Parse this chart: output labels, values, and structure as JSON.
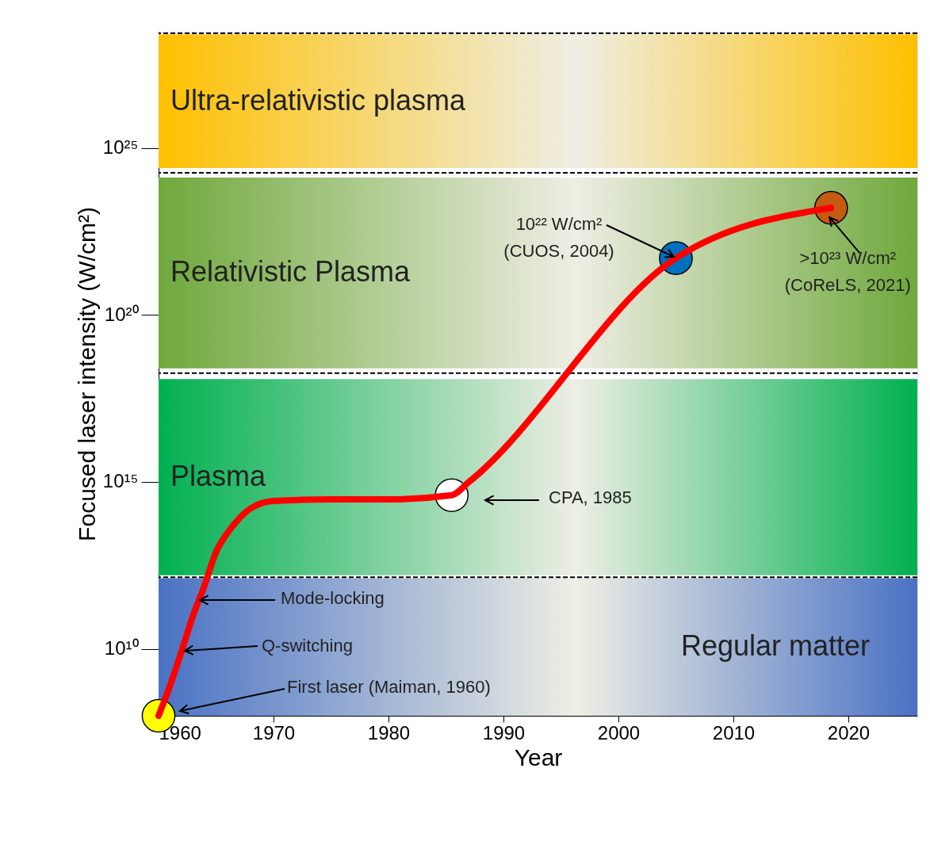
{
  "chart_data": {
    "type": "line",
    "xlabel": "Year",
    "ylabel": "Focused laser intensity (W/cm²)",
    "xlim": [
      1960,
      2026
    ],
    "xticks": [
      1960,
      1970,
      1980,
      1990,
      2000,
      2010,
      2020
    ],
    "ylim": [
      100000000.0,
      3e+28
    ],
    "log": "y",
    "yticks": [
      {
        "value": 10000000000.0,
        "label": "10¹⁰"
      },
      {
        "value": 1000000000000000.0,
        "label": "10¹⁵"
      },
      {
        "value": 1e+20,
        "label": "10²⁰"
      },
      {
        "value": 1e+25,
        "label": "10²⁵"
      }
    ],
    "grid": false,
    "bands": [
      {
        "axis": "y",
        "from": 100000000.0,
        "to": 1300000000000.0,
        "label": "Regular matter",
        "color": "#4a72c4"
      },
      {
        "axis": "y",
        "from": 1600000000000.0,
        "to": 1.2e+18,
        "label": "Plasma",
        "color": "#00b050"
      },
      {
        "axis": "y",
        "from": 2.5e+18,
        "to": 1.3e+24,
        "label": "Relativistic Plasma",
        "color": "#6fa83c"
      },
      {
        "axis": "y",
        "from": 2.5e+24,
        "to": 2.5e+28,
        "label": "Ultra-relativistic plasma",
        "color": "#ffc000"
      }
    ],
    "ref_lines": [
      {
        "axis": "y",
        "value": 1400000000000.0,
        "color": "#000000",
        "line_style": "dashed"
      },
      {
        "axis": "y",
        "value": 1.8e+18,
        "color": "#000000",
        "line_style": "dashed"
      },
      {
        "axis": "y",
        "value": 1.8e+24,
        "color": "#000000",
        "line_style": "dashed"
      },
      {
        "axis": "y",
        "value": 2.7e+28,
        "color": "#000000",
        "line_style": "dashed"
      }
    ],
    "series": [
      {
        "type": "line",
        "color": "#ff0000",
        "x": [
          1960,
          1961,
          1962,
          1963,
          1964,
          1965,
          1966,
          1967,
          1968,
          1970,
          1975,
          1980,
          1985.5,
          1987,
          2005,
          2018.5
        ],
        "values": [
          100000000.0,
          800000000.0,
          8500000000.0,
          100000000000.0,
          800000000000.0,
          8000000000000.0,
          30000000000000.0,
          80000000000000.0,
          160000000000000.0,
          270000000000000.0,
          300000000000000.0,
          300000000000000.0,
          400000000000000.0,
          1000000000000000.0,
          5e+21,
          1.6e+23
        ]
      },
      {
        "type": "scatter",
        "marker": "circle",
        "x": [
          1960,
          1985.5,
          2005,
          2018.5
        ],
        "values": [
          100000000.0,
          400000000000000.0,
          5e+21,
          1.6e+23
        ],
        "colors": [
          "#ffff00",
          "#ffffff",
          "#0070c0",
          "#c55a11"
        ]
      }
    ],
    "annotations": [
      "First laser (Maiman, 1960)",
      "Q-switching",
      "Mode-locking",
      "CPA, 1985",
      "10²² W/cm²\n(CUOS, 2004)",
      {
        "text": ">10²³ W/cm²\n(CoReLS, 2021)",
        "x": 2018.5,
        "y": 1.6e+23
      }
    ]
  }
}
